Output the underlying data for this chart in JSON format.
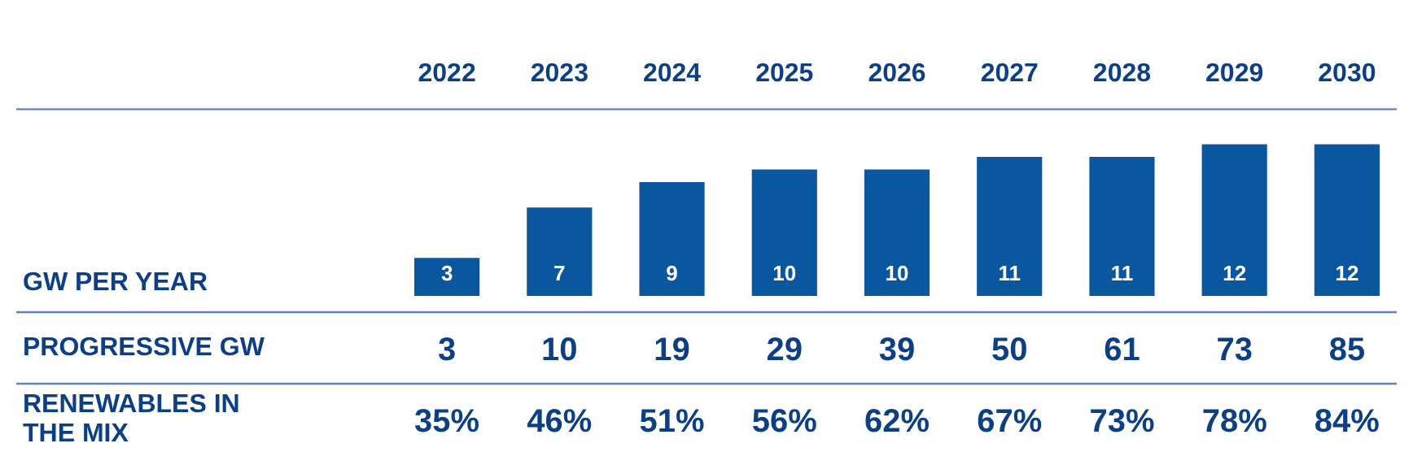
{
  "chart_data": {
    "type": "bar",
    "categories": [
      "2022",
      "2023",
      "2024",
      "2025",
      "2026",
      "2027",
      "2028",
      "2029",
      "2030"
    ],
    "series": [
      {
        "name": "GW PER YEAR",
        "color": "#0a57a0",
        "values": [
          3,
          7,
          9,
          10,
          10,
          11,
          11,
          12,
          12
        ]
      }
    ],
    "annotations": [
      "PROGRESSIVE GW",
      "3",
      "10",
      "19",
      "29",
      "39",
      "50",
      "61",
      "73",
      "85",
      "RENEWABLES IN THE MIX",
      "35%",
      "46%",
      "51%",
      "56%",
      "62%",
      "67%",
      "73%",
      "78%",
      "84%"
    ],
    "data_labels": true,
    "tick_labels": "x",
    "legend": false,
    "grid": false
  }
}
